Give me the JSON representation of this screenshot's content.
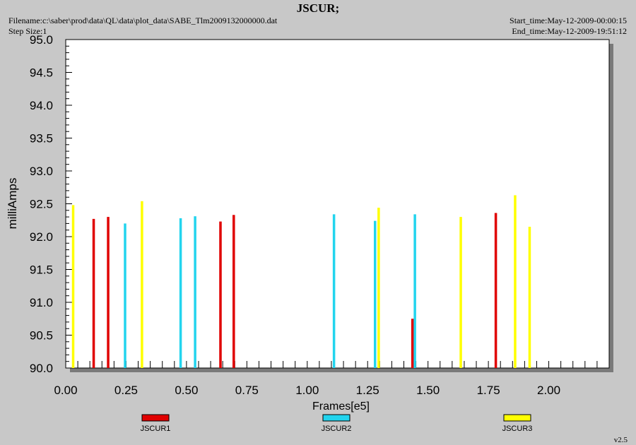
{
  "header": {
    "title": "JSCUR;",
    "filename": "Filename:c:\\saber\\prod\\data\\QL\\data\\plot_data\\SABE_Tlm2009132000000.dat",
    "step_size": "Step Size:1",
    "start_time": "Start_time:May-12-2009-00:00:15",
    "end_time": "End_time:May-12-2009-19:51:12"
  },
  "version": "v2.5",
  "colors": {
    "JSCUR1": "#e00000",
    "JSCUR2": "#22d4ee",
    "JSCUR3": "#ffff00",
    "plot_bg": "#ffffff",
    "page_bg": "#c8c8c8"
  },
  "chart_data": {
    "type": "bar",
    "title": "JSCUR;",
    "xlabel": "Frames[e5]",
    "ylabel": "milliAmps",
    "xlim": [
      0.0,
      2.25
    ],
    "ylim": [
      90.0,
      95.0
    ],
    "x_ticks": [
      "0.00",
      "0.25",
      "0.50",
      "0.75",
      "1.00",
      "1.25",
      "1.50",
      "1.75",
      "2.00"
    ],
    "y_ticks": [
      "90.0",
      "90.5",
      "91.0",
      "91.5",
      "92.0",
      "92.5",
      "93.0",
      "93.5",
      "94.0",
      "94.5",
      "95.0"
    ],
    "grid": false,
    "legend_position": "bottom",
    "series": [
      {
        "name": "JSCUR1",
        "x": [
          0.115,
          0.175,
          0.64,
          0.695,
          1.435,
          1.78
        ],
        "values": [
          92.27,
          92.3,
          92.23,
          92.33,
          90.75,
          92.36
        ]
      },
      {
        "name": "JSCUR2",
        "x": [
          0.245,
          0.475,
          0.535,
          1.11,
          1.28,
          1.445
        ],
        "values": [
          92.2,
          92.28,
          92.31,
          92.34,
          92.24,
          92.34
        ]
      },
      {
        "name": "JSCUR3",
        "x": [
          0.03,
          0.315,
          1.295,
          1.635,
          1.86,
          1.92
        ],
        "values": [
          92.48,
          92.54,
          92.44,
          92.3,
          92.63,
          92.15
        ]
      }
    ]
  }
}
